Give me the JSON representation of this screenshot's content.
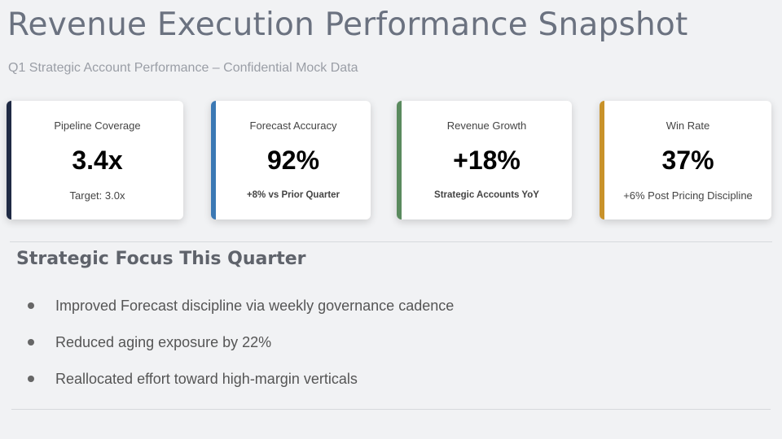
{
  "header": {
    "title": "Revenue Execution Performance Snapshot",
    "subtitle": "Q1 Strategic Account Performance – Confidential Mock Data"
  },
  "kpis": [
    {
      "label": "Pipeline Coverage",
      "value": "3.4x",
      "note": "Target: 3.0x",
      "accent": "#1f2a44"
    },
    {
      "label": "Forecast Accuracy",
      "value": "92%",
      "note": "+8% vs Prior Quarter",
      "accent": "#3b78b4"
    },
    {
      "label": "Revenue Growth",
      "value": "+18%",
      "note": "Strategic Accounts YoY",
      "accent": "#5a8a5e"
    },
    {
      "label": "Win Rate",
      "value": "37%",
      "note": "+6% Post Pricing Discipline",
      "accent": "#c8922a"
    }
  ],
  "focus": {
    "title": "Strategic Focus This Quarter",
    "items": [
      "Improved Forecast discipline via weekly governance cadence",
      "Reduced aging exposure by 22%",
      "Reallocated effort toward high-margin verticals"
    ]
  }
}
